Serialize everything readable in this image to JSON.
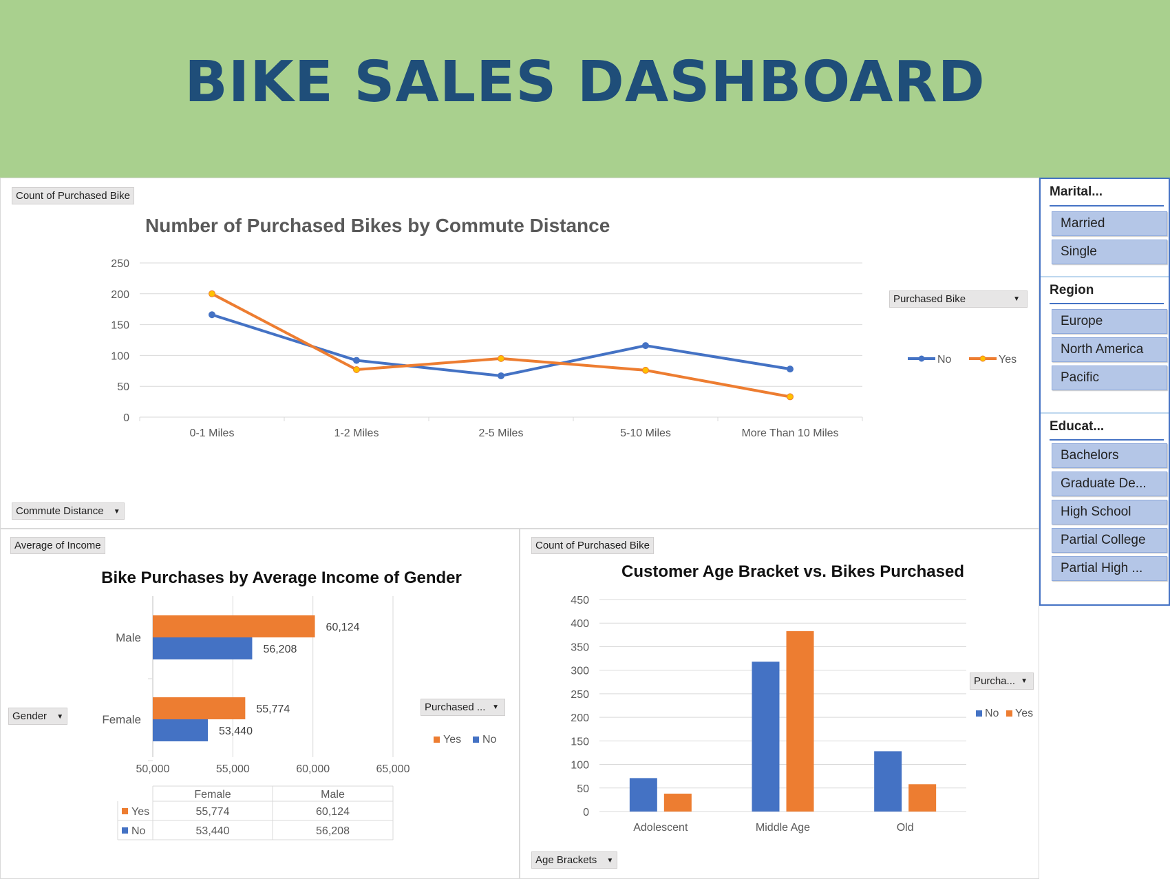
{
  "dashboard": {
    "title": "BIKE SALES DASHBOARD"
  },
  "colors": {
    "no": "#4472c4",
    "yes": "#ed7d31",
    "marker_yes": "#ffc000",
    "grid": "#d9d9d9",
    "banner": "#a9d08e",
    "title": "#1f4e79"
  },
  "line_panel": {
    "value_field": "Count of Purchased Bike",
    "legend_field": "Purchased Bike",
    "axis_field": "Commute Distance"
  },
  "bar_panel": {
    "value_field": "Average of Income",
    "legend_field": "Purchased ...",
    "axis_field": "Gender"
  },
  "column_panel": {
    "value_field": "Count of Purchased Bike",
    "legend_field": "Purcha...",
    "axis_field": "Age Brackets"
  },
  "slicers": {
    "marital": {
      "title": "Marital...",
      "items": [
        "Married",
        "Single"
      ]
    },
    "region": {
      "title": "Region",
      "items": [
        "Europe",
        "North America",
        "Pacific"
      ]
    },
    "education": {
      "title": "Educat...",
      "items": [
        "Bachelors",
        "Graduate De...",
        "High School",
        "Partial College",
        "Partial High ..."
      ]
    }
  },
  "chart_data": [
    {
      "type": "line",
      "title": "Number of Purchased Bikes by Commute Distance",
      "categories": [
        "0-1 Miles",
        "1-2 Miles",
        "2-5 Miles",
        "5-10 Miles",
        "More Than 10 Miles"
      ],
      "series": [
        {
          "name": "No",
          "values": [
            166,
            92,
            67,
            116,
            78
          ]
        },
        {
          "name": "Yes",
          "values": [
            200,
            77,
            95,
            76,
            33
          ]
        }
      ],
      "ylim": [
        0,
        250
      ],
      "yticks": [
        0,
        50,
        100,
        150,
        200,
        250
      ],
      "legend_position": "right"
    },
    {
      "type": "bar",
      "orientation": "horizontal",
      "title": "Bike Purchases by Average Income of Gender",
      "categories": [
        "Female",
        "Male"
      ],
      "series": [
        {
          "name": "Yes",
          "values": [
            55774,
            60124
          ],
          "labels": [
            "55,774",
            "60,124"
          ]
        },
        {
          "name": "No",
          "values": [
            53440,
            56208
          ],
          "labels": [
            "53,440",
            "56,208"
          ]
        }
      ],
      "xlim": [
        50000,
        65000
      ],
      "xticks": [
        "50,000",
        "55,000",
        "60,000",
        "65,000"
      ],
      "legend_position": "right",
      "data_table": {
        "columns": [
          "Female",
          "Male"
        ],
        "rows": [
          {
            "name": "Yes",
            "cells": [
              "55,774",
              "60,124"
            ]
          },
          {
            "name": "No",
            "cells": [
              "53,440",
              "56,208"
            ]
          }
        ]
      }
    },
    {
      "type": "bar",
      "title": "Customer Age Bracket vs. Bikes Purchased",
      "categories": [
        "Adolescent",
        "Middle Age",
        "Old"
      ],
      "series": [
        {
          "name": "No",
          "values": [
            71,
            318,
            128
          ]
        },
        {
          "name": "Yes",
          "values": [
            38,
            383,
            58
          ]
        }
      ],
      "ylim": [
        0,
        450
      ],
      "yticks": [
        0,
        50,
        100,
        150,
        200,
        250,
        300,
        350,
        400,
        450
      ],
      "legend_position": "right"
    }
  ]
}
